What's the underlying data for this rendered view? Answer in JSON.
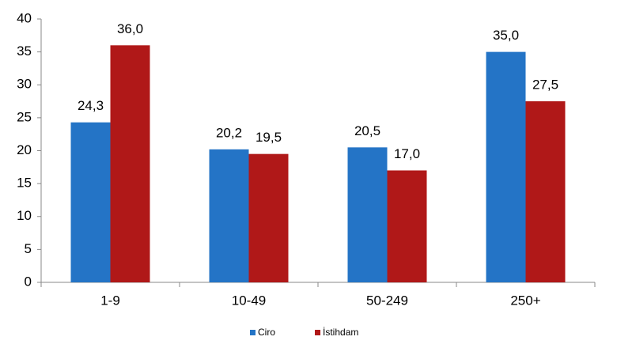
{
  "chart_data": {
    "type": "bar",
    "categories": [
      "1-9",
      "10-49",
      "50-249",
      "250+"
    ],
    "series": [
      {
        "name": "Ciro",
        "color": "#2474c6",
        "values": [
          24.3,
          20.2,
          20.5,
          35.0
        ],
        "value_labels": [
          "24,3",
          "20,2",
          "20,5",
          "35,0"
        ]
      },
      {
        "name": "İstihdam",
        "color": "#b01818",
        "values": [
          36.0,
          19.5,
          17.0,
          27.5
        ],
        "value_labels": [
          "36,0",
          "19,5",
          "17,0",
          "27,5"
        ]
      }
    ],
    "ylim": [
      0,
      40
    ],
    "yticks": [
      0,
      5,
      10,
      15,
      20,
      25,
      30,
      35,
      40
    ],
    "grid": false,
    "legend": "bottom"
  }
}
